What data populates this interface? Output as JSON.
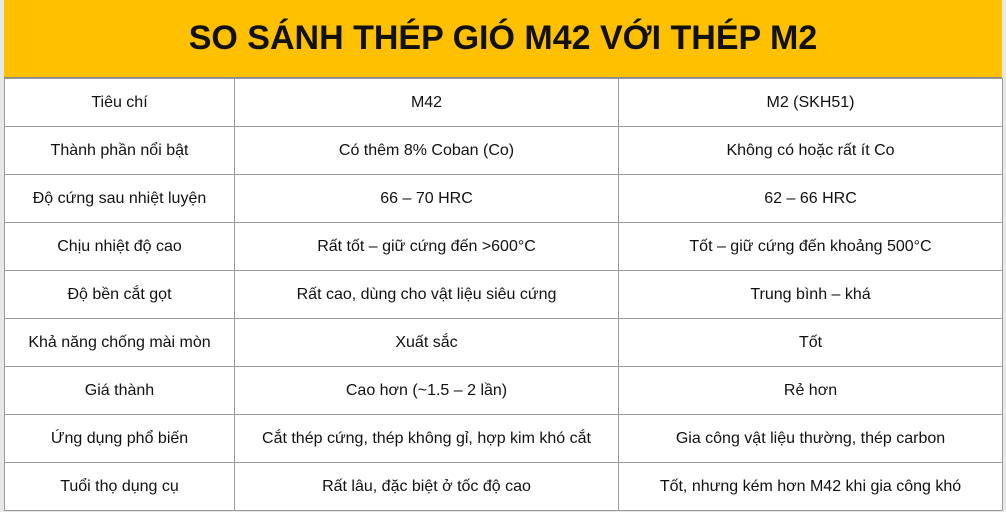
{
  "header": {
    "title": "SO SÁNH THÉP GIÓ M42 VỚI THÉP M2"
  },
  "table": {
    "columns": [
      "Tiêu chí",
      "M42",
      "M2 (SKH51)"
    ],
    "rows": [
      [
        "Thành phần nổi bật",
        "Có thêm 8% Coban (Co)",
        "Không có hoặc rất ít Co"
      ],
      [
        "Độ cứng sau nhiệt luyện",
        "66 – 70 HRC",
        "62 – 66 HRC"
      ],
      [
        "Chịu nhiệt độ cao",
        "Rất tốt – giữ cứng đến >600°C",
        "Tốt – giữ cứng đến khoảng 500°C"
      ],
      [
        "Độ bền cắt gọt",
        "Rất cao, dùng cho vật liệu siêu cứng",
        "Trung bình – khá"
      ],
      [
        "Khả năng chống mài mòn",
        "Xuất sắc",
        "Tốt"
      ],
      [
        "Giá thành",
        "Cao hơn (~1.5 – 2 lần)",
        "Rẻ hơn"
      ],
      [
        "Ứng dụng phổ biến",
        "Cắt thép cứng, thép không gỉ, hợp kim khó cắt",
        "Gia công vật liệu thường, thép carbon"
      ],
      [
        "Tuổi thọ dụng cụ",
        "Rất lâu, đặc biệt ở tốc độ cao",
        "Tốt, nhưng kém hơn M42 khi gia công khó"
      ]
    ]
  }
}
